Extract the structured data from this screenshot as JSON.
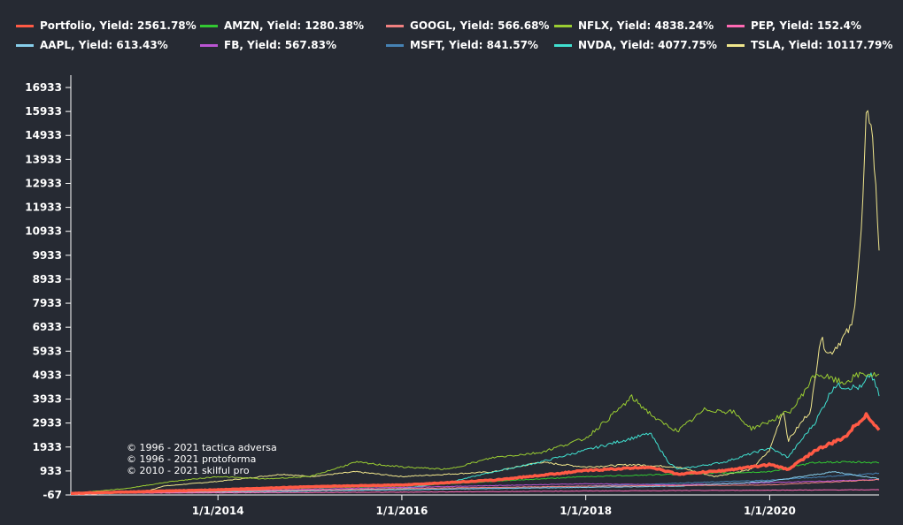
{
  "chart_data": {
    "type": "line",
    "title": "",
    "xlabel": "",
    "ylabel": "",
    "xlim": [
      2012.4,
      2021.19
    ],
    "ylim": [
      -67,
      17433
    ],
    "yticks": [
      -67,
      933,
      1933,
      2933,
      3933,
      4933,
      5933,
      6933,
      7933,
      8933,
      9933,
      10933,
      11933,
      12933,
      13933,
      14933,
      15933,
      16933
    ],
    "xticks": [
      {
        "value": 2014,
        "label": "1/1/2014"
      },
      {
        "value": 2016,
        "label": "1/1/2016"
      },
      {
        "value": 2018,
        "label": "1/1/2018"
      },
      {
        "value": 2020,
        "label": "1/1/2020"
      }
    ],
    "legend_position": "top",
    "series": [
      {
        "name": "Portfolio",
        "label": "Portfolio, Yield: 2561.78%",
        "color": "#ff5a45",
        "width": 3.5,
        "points": [
          [
            2012.4,
            0
          ],
          [
            2014,
            150
          ],
          [
            2015,
            280
          ],
          [
            2016,
            350
          ],
          [
            2017,
            550
          ],
          [
            2018,
            950
          ],
          [
            2018.7,
            1100
          ],
          [
            2019,
            800
          ],
          [
            2019.5,
            950
          ],
          [
            2020,
            1200
          ],
          [
            2020.2,
            1000
          ],
          [
            2020.5,
            1800
          ],
          [
            2020.8,
            2300
          ],
          [
            2021.05,
            3300
          ],
          [
            2021.19,
            2600
          ]
        ]
      },
      {
        "name": "AMZN",
        "label": "AMZN, Yield: 1280.38%",
        "color": "#32c832",
        "width": 1,
        "points": [
          [
            2012.4,
            0
          ],
          [
            2014,
            150
          ],
          [
            2016,
            300
          ],
          [
            2018,
            700
          ],
          [
            2019,
            800
          ],
          [
            2020,
            900
          ],
          [
            2020.5,
            1300
          ],
          [
            2021,
            1300
          ],
          [
            2021.19,
            1280
          ]
        ]
      },
      {
        "name": "GOOGL",
        "label": "GOOGL, Yield: 566.68%",
        "color": "#f08080",
        "width": 1,
        "points": [
          [
            2012.4,
            0
          ],
          [
            2016,
            200
          ],
          [
            2018,
            300
          ],
          [
            2020,
            350
          ],
          [
            2021.19,
            570
          ]
        ]
      },
      {
        "name": "NFLX",
        "label": "NFLX, Yield: 4838.24%",
        "color": "#9acd32",
        "width": 1,
        "points": [
          [
            2012.4,
            0
          ],
          [
            2013,
            200
          ],
          [
            2013.5,
            500
          ],
          [
            2014,
            700
          ],
          [
            2014.5,
            600
          ],
          [
            2015,
            700
          ],
          [
            2015.5,
            1300
          ],
          [
            2016,
            1100
          ],
          [
            2016.5,
            1000
          ],
          [
            2017,
            1500
          ],
          [
            2017.5,
            1700
          ],
          [
            2018,
            2300
          ],
          [
            2018.3,
            3300
          ],
          [
            2018.5,
            4000
          ],
          [
            2018.8,
            3000
          ],
          [
            2019,
            2600
          ],
          [
            2019.3,
            3500
          ],
          [
            2019.6,
            3400
          ],
          [
            2019.8,
            2700
          ],
          [
            2020,
            3000
          ],
          [
            2020.25,
            3500
          ],
          [
            2020.5,
            5000
          ],
          [
            2020.8,
            4600
          ],
          [
            2021,
            5000
          ],
          [
            2021.19,
            4900
          ]
        ]
      },
      {
        "name": "PEP",
        "label": "PEP, Yield: 152.4%",
        "color": "#ff69b4",
        "width": 1,
        "points": [
          [
            2012.4,
            0
          ],
          [
            2016,
            50
          ],
          [
            2018,
            100
          ],
          [
            2021.19,
            150
          ]
        ]
      },
      {
        "name": "AAPL",
        "label": "AAPL, Yield: 613.43%",
        "color": "#87ceeb",
        "width": 1,
        "points": [
          [
            2012.4,
            0
          ],
          [
            2016,
            150
          ],
          [
            2018,
            250
          ],
          [
            2019,
            300
          ],
          [
            2020,
            500
          ],
          [
            2020.7,
            900
          ],
          [
            2021.19,
            610
          ]
        ]
      },
      {
        "name": "FB",
        "label": "FB, Yield: 567.83%",
        "color": "#ba55d3",
        "width": 1,
        "points": [
          [
            2012.4,
            0
          ],
          [
            2014,
            100
          ],
          [
            2016,
            250
          ],
          [
            2018,
            400
          ],
          [
            2019,
            350
          ],
          [
            2020,
            450
          ],
          [
            2021.19,
            570
          ]
        ]
      },
      {
        "name": "MSFT",
        "label": "MSFT, Yield: 841.57%",
        "color": "#4682b4",
        "width": 1,
        "points": [
          [
            2012.4,
            0
          ],
          [
            2016,
            150
          ],
          [
            2018,
            300
          ],
          [
            2020,
            550
          ],
          [
            2021.19,
            840
          ]
        ]
      },
      {
        "name": "NVDA",
        "label": "NVDA, Yield: 4077.75%",
        "color": "#40e0d0",
        "width": 1,
        "points": [
          [
            2012.4,
            0
          ],
          [
            2014,
            50
          ],
          [
            2015,
            100
          ],
          [
            2016,
            200
          ],
          [
            2016.5,
            450
          ],
          [
            2017,
            900
          ],
          [
            2017.5,
            1300
          ],
          [
            2018,
            1800
          ],
          [
            2018.7,
            2500
          ],
          [
            2018.9,
            1300
          ],
          [
            2019,
            1000
          ],
          [
            2019.5,
            1300
          ],
          [
            2020,
            1900
          ],
          [
            2020.2,
            1500
          ],
          [
            2020.5,
            3000
          ],
          [
            2020.7,
            4500
          ],
          [
            2021,
            4400
          ],
          [
            2021.1,
            5000
          ],
          [
            2021.19,
            4100
          ]
        ]
      },
      {
        "name": "TSLA",
        "label": "TSLA, Yield: 10117.79%",
        "color": "#f0e68c",
        "width": 1,
        "points": [
          [
            2012.4,
            0
          ],
          [
            2013.2,
            50
          ],
          [
            2013.4,
            300
          ],
          [
            2013.7,
            400
          ],
          [
            2014,
            500
          ],
          [
            2014.7,
            800
          ],
          [
            2015,
            700
          ],
          [
            2015.5,
            900
          ],
          [
            2016,
            700
          ],
          [
            2016.5,
            800
          ],
          [
            2017,
            900
          ],
          [
            2017.5,
            1300
          ],
          [
            2018,
            1100
          ],
          [
            2018.5,
            1200
          ],
          [
            2019,
            1100
          ],
          [
            2019.4,
            700
          ],
          [
            2019.8,
            1000
          ],
          [
            2020,
            1800
          ],
          [
            2020.15,
            3500
          ],
          [
            2020.2,
            2200
          ],
          [
            2020.45,
            3500
          ],
          [
            2020.55,
            6500
          ],
          [
            2020.65,
            5800
          ],
          [
            2020.8,
            6500
          ],
          [
            2020.9,
            7000
          ],
          [
            2021,
            11000
          ],
          [
            2021.05,
            15500
          ],
          [
            2021.1,
            15800
          ],
          [
            2021.15,
            13000
          ],
          [
            2021.19,
            10200
          ]
        ]
      }
    ]
  },
  "credits": [
    "© 1996 - 2021 tactica adversa",
    "© 1996 - 2021 protoforma",
    "© 2010 - 2021 skilful pro"
  ]
}
